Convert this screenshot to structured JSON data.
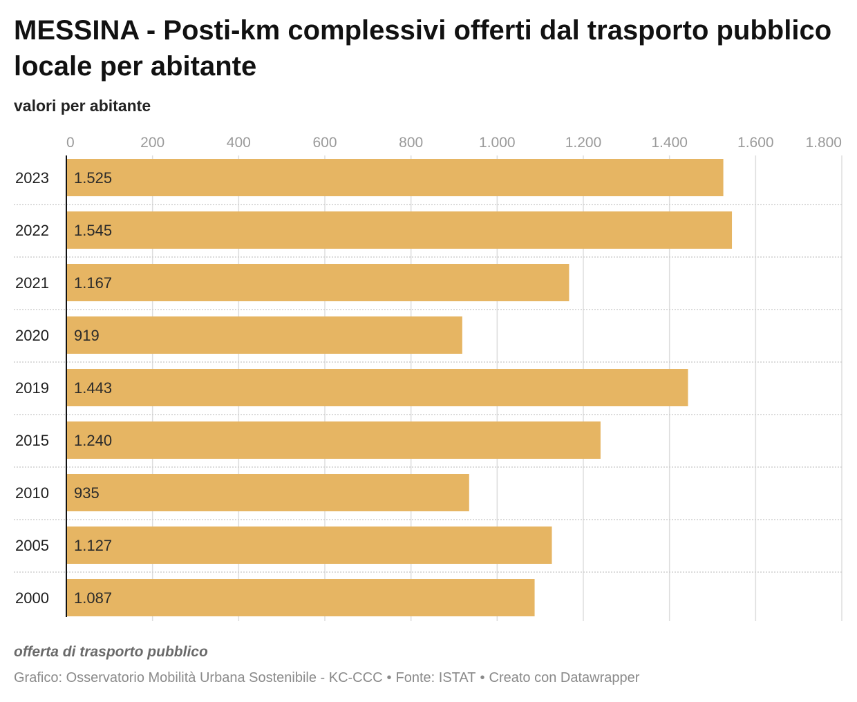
{
  "title": "MESSINA - Posti-km complessivi offerti dal trasporto pubblico locale per abitante",
  "subtitle": "valori per abitante",
  "notes": "offerta di trasporto pubblico",
  "footer": {
    "chart_credit": "Grafico: Osservatorio Mobilità Urbana Sostenibile - KC-CCC",
    "source": "Fonte: ISTAT",
    "made_with": "Creato con Datawrapper"
  },
  "colors": {
    "bar": "#e6b563",
    "grid": "#dddddd",
    "axis": "#111111"
  },
  "chart_data": {
    "type": "bar",
    "orientation": "horizontal",
    "categories": [
      "2023",
      "2022",
      "2021",
      "2020",
      "2019",
      "2015",
      "2010",
      "2005",
      "2000"
    ],
    "values": [
      1525,
      1545,
      1167,
      919,
      1443,
      1240,
      935,
      1127,
      1087
    ],
    "value_labels": [
      "1.525",
      "1.545",
      "1.167",
      "919",
      "1.443",
      "1.240",
      "935",
      "1.127",
      "1.087"
    ],
    "xlim": [
      0,
      1800
    ],
    "xticks": [
      0,
      200,
      400,
      600,
      800,
      1000,
      1200,
      1400,
      1600,
      1800
    ],
    "xtick_labels": [
      "0",
      "200",
      "400",
      "600",
      "800",
      "1.000",
      "1.200",
      "1.400",
      "1.600",
      "1.800"
    ],
    "grid": true,
    "legend": false
  }
}
